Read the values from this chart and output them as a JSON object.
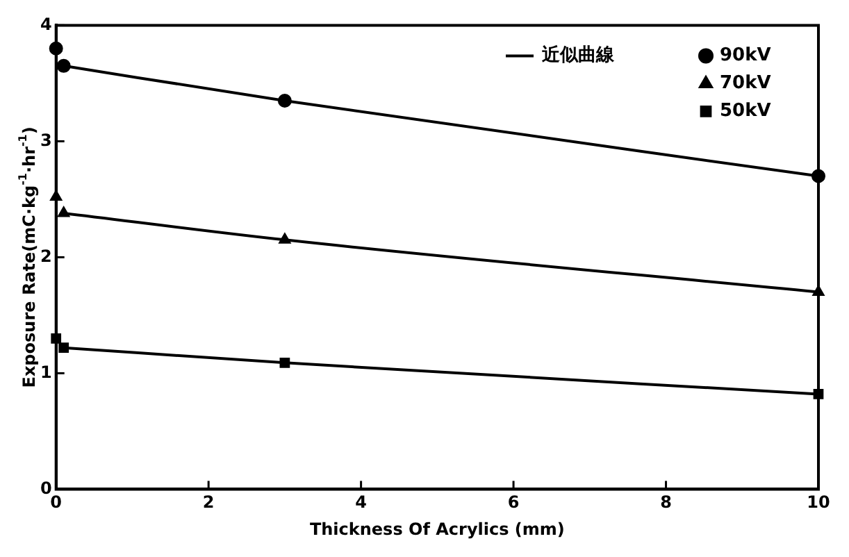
{
  "chart_data": {
    "type": "scatter",
    "xlabel": "Thickness Of Acrylics (mm)",
    "ylabel": "Exposure Rate(mC·kg$^{-1}$·hr$^{-1}$)",
    "xlim": [
      0,
      10
    ],
    "ylim": [
      0,
      4
    ],
    "xticks": [
      0,
      2,
      4,
      6,
      8,
      10
    ],
    "yticks": [
      0,
      1,
      2,
      3,
      4
    ],
    "grid": false,
    "legend": "top right",
    "series": [
      {
        "type": "line",
        "name": "近似曲線",
        "color": "#000000",
        "marker": "none",
        "line_style": "solid",
        "x": [
          0.1,
          3,
          10
        ],
        "values": [
          3.65,
          3.35,
          2.7
        ]
      },
      {
        "type": "line",
        "color": "#000000",
        "marker": "none",
        "line_style": "solid",
        "x": [
          0.1,
          3,
          10
        ],
        "values": [
          2.38,
          2.15,
          1.7
        ]
      },
      {
        "type": "line",
        "color": "#000000",
        "marker": "none",
        "line_style": "solid",
        "x": [
          0.1,
          3,
          10
        ],
        "values": [
          1.22,
          1.09,
          0.82
        ]
      },
      {
        "type": "scatter",
        "name": "90kV",
        "color": "#000000",
        "marker": "circle",
        "x": [
          0,
          0.1,
          3,
          10
        ],
        "values": [
          3.8,
          3.65,
          3.35,
          2.7
        ]
      },
      {
        "type": "scatter",
        "name": "70kV",
        "color": "#000000",
        "marker": "triangle",
        "x": [
          0,
          0.1,
          3,
          10
        ],
        "values": [
          2.52,
          2.38,
          2.15,
          1.7
        ]
      },
      {
        "type": "scatter",
        "name": "50kV",
        "color": "#000000",
        "marker": "square",
        "x": [
          0,
          0.1,
          3,
          10
        ],
        "values": [
          1.3,
          1.22,
          1.09,
          0.82
        ]
      }
    ]
  }
}
